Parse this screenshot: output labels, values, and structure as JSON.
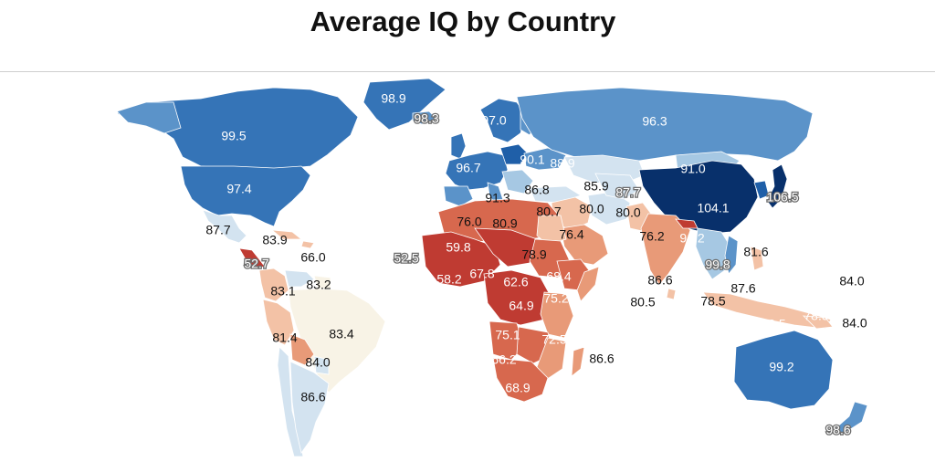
{
  "title": "Average IQ by Country",
  "colors": {
    "c1": "#08306b",
    "c2": "#1f5fa8",
    "c3": "#3574b7",
    "c4": "#5b93c9",
    "c5": "#a6c8e3",
    "c6": "#d3e3f0",
    "c7": "#f8f3e6",
    "c8": "#f3c2a6",
    "c9": "#e89a78",
    "c10": "#d7684e",
    "c11": "#bf3b32",
    "c12": "#98111f"
  },
  "values": [
    "98.9",
    "98.3",
    "97.0",
    "96.3",
    "99.5",
    "90.1",
    "88.9",
    "91.0",
    "96.7",
    "97.4",
    "86.8",
    "85.9",
    "87.7",
    "106.5",
    "91.3",
    "80.7",
    "80.0",
    "80.0",
    "104.1",
    "87.7",
    "83.9",
    "76.0",
    "80.9",
    "76.4",
    "76.2",
    "91.2",
    "66.0",
    "59.8",
    "78.9",
    "81.6",
    "52.5",
    "52.7",
    "99.8",
    "84.0",
    "83.2",
    "58.2",
    "67.8",
    "62.6",
    "68.4",
    "86.6",
    "83.1",
    "75.2",
    "87.6",
    "64.9",
    "80.5",
    "78.5",
    "83.4",
    "81.4",
    "75.1",
    "72.5",
    "78.5",
    "78.5",
    "84.0",
    "84.0",
    "86.6",
    "66.2",
    "99.2",
    "68.9",
    "86.6",
    "98.6"
  ]
}
